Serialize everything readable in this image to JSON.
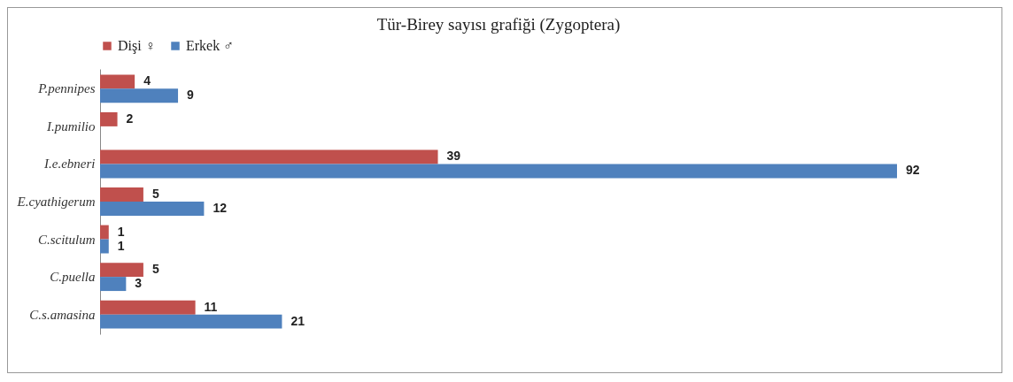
{
  "chart_data": {
    "type": "bar",
    "orientation": "horizontal",
    "title": "Tür-Birey sayısı grafiği (Zygoptera)",
    "categories": [
      "P.pennipes",
      "I.pumilio",
      "I.e.ebneri",
      "E.cyathigerum",
      "C.scitulum",
      "C.puella",
      "C.s.amasina"
    ],
    "series": [
      {
        "name": "Dişi ♀",
        "color": "#c0504d",
        "values": [
          4,
          2,
          39,
          5,
          1,
          5,
          11
        ]
      },
      {
        "name": "Erkek ♂",
        "color": "#4f81bd",
        "values": [
          9,
          null,
          92,
          12,
          1,
          3,
          21
        ]
      }
    ],
    "data_labels": true,
    "legend": "top",
    "grid": false
  }
}
